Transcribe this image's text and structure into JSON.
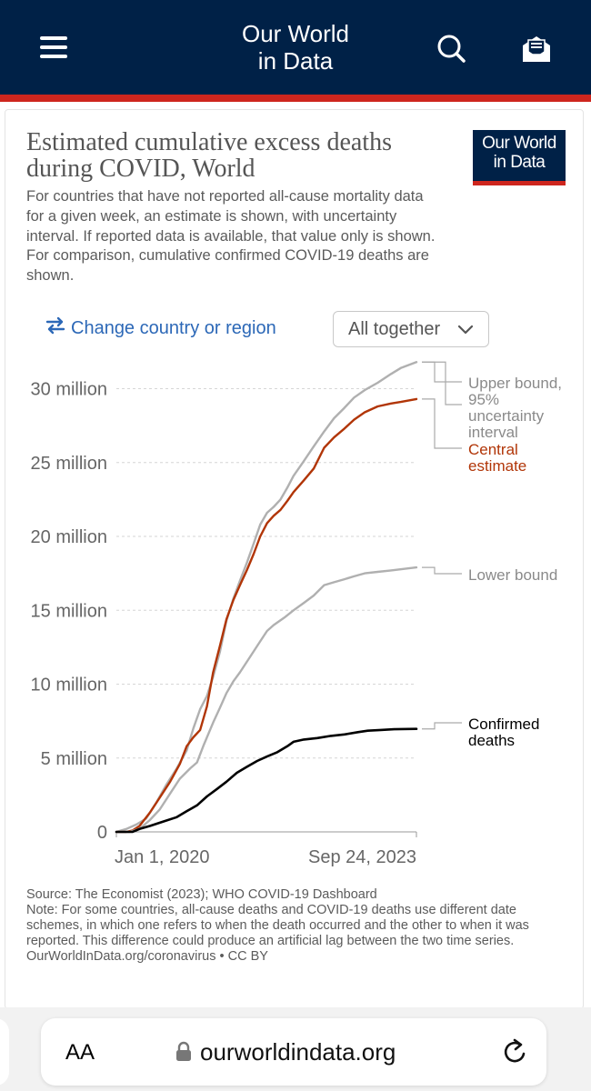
{
  "header": {
    "site_title": "Our World\nin Data",
    "menu_icon": "hamburger-menu-icon",
    "search_icon": "search-icon",
    "newsletter_icon": "newsletter-envelope-icon"
  },
  "chart_header": {
    "title": "Estimated cumulative excess deaths during COVID, World",
    "subtitle": "For countries that have not reported all-cause mortality data for a given week, an estimate is shown, with uncertainty interval. If reported data is available, that value only is shown. For comparison, cumulative confirmed COVID-19 deaths are shown.",
    "logo_text": "Our World\nin Data"
  },
  "controls": {
    "change_country_label": "Change country or region",
    "change_country_icon": "swap-arrows-icon",
    "view_select_label": "All together",
    "view_select_icon": "chevron-down-icon"
  },
  "chart_data": {
    "type": "line",
    "title": "Estimated cumulative excess deaths during COVID, World",
    "y_ticks": [
      {
        "value": 0,
        "label": "0"
      },
      {
        "value": 5000000,
        "label": "5 million"
      },
      {
        "value": 10000000,
        "label": "10 million"
      },
      {
        "value": 15000000,
        "label": "15 million"
      },
      {
        "value": 20000000,
        "label": "20 million"
      },
      {
        "value": 25000000,
        "label": "25 million"
      },
      {
        "value": 30000000,
        "label": "30 million"
      }
    ],
    "x_tick_labels": [
      "Jan 1, 2020",
      "Sep 24, 2023"
    ],
    "xlim": [
      "2020-01-01",
      "2023-09-24"
    ],
    "ylim": [
      0,
      32000000
    ],
    "grid": true,
    "legend_placement": "right, inline labels",
    "series": [
      {
        "name": "Upper bound, 95% uncertainty interval",
        "color": "#b0b0b0",
        "points": [
          [
            "2020-01-01",
            0
          ],
          [
            "2020-02-15",
            200000
          ],
          [
            "2020-04-01",
            500000
          ],
          [
            "2020-05-15",
            900000
          ],
          [
            "2020-07-01",
            2000000
          ],
          [
            "2020-08-15",
            3200000
          ],
          [
            "2020-10-01",
            4300000
          ],
          [
            "2020-11-15",
            5500000
          ],
          [
            "2020-12-15",
            7000000
          ],
          [
            "2021-01-15",
            8300000
          ],
          [
            "2021-02-15",
            9200000
          ],
          [
            "2021-03-15",
            10500000
          ],
          [
            "2021-04-15",
            12200000
          ],
          [
            "2021-05-15",
            14300000
          ],
          [
            "2021-06-15",
            15800000
          ],
          [
            "2021-07-15",
            17000000
          ],
          [
            "2021-08-15",
            18200000
          ],
          [
            "2021-09-15",
            19500000
          ],
          [
            "2021-10-15",
            20800000
          ],
          [
            "2021-11-15",
            21600000
          ],
          [
            "2021-12-15",
            22000000
          ],
          [
            "2022-01-15",
            22500000
          ],
          [
            "2022-02-15",
            23300000
          ],
          [
            "2022-03-15",
            24100000
          ],
          [
            "2022-05-01",
            25100000
          ],
          [
            "2022-06-15",
            26100000
          ],
          [
            "2022-08-01",
            27100000
          ],
          [
            "2022-09-15",
            28000000
          ],
          [
            "2022-11-01",
            28700000
          ],
          [
            "2022-12-15",
            29400000
          ],
          [
            "2023-02-01",
            29900000
          ],
          [
            "2023-04-01",
            30400000
          ],
          [
            "2023-06-01",
            31000000
          ],
          [
            "2023-07-15",
            31400000
          ],
          [
            "2023-09-24",
            31800000
          ]
        ]
      },
      {
        "name": "Central estimate",
        "color": "#b13507",
        "points": [
          [
            "2020-01-01",
            0
          ],
          [
            "2020-02-15",
            0
          ],
          [
            "2020-03-15",
            100000
          ],
          [
            "2020-04-15",
            400000
          ],
          [
            "2020-06-01",
            1300000
          ],
          [
            "2020-07-15",
            2300000
          ],
          [
            "2020-09-01",
            3400000
          ],
          [
            "2020-10-15",
            4600000
          ],
          [
            "2020-11-15",
            5800000
          ],
          [
            "2020-12-15",
            6400000
          ],
          [
            "2021-01-15",
            6900000
          ],
          [
            "2021-02-15",
            8500000
          ],
          [
            "2021-03-15",
            10800000
          ],
          [
            "2021-04-15",
            12600000
          ],
          [
            "2021-05-15",
            14400000
          ],
          [
            "2021-06-15",
            15700000
          ],
          [
            "2021-07-15",
            16700000
          ],
          [
            "2021-08-15",
            17700000
          ],
          [
            "2021-09-15",
            18800000
          ],
          [
            "2021-10-15",
            20000000
          ],
          [
            "2021-11-15",
            20900000
          ],
          [
            "2021-12-15",
            21400000
          ],
          [
            "2022-01-15",
            21800000
          ],
          [
            "2022-02-15",
            22400000
          ],
          [
            "2022-03-15",
            23000000
          ],
          [
            "2022-05-01",
            23800000
          ],
          [
            "2022-06-15",
            24600000
          ],
          [
            "2022-08-01",
            26000000
          ],
          [
            "2022-09-15",
            26700000
          ],
          [
            "2022-11-01",
            27300000
          ],
          [
            "2022-12-15",
            27900000
          ],
          [
            "2023-02-01",
            28400000
          ],
          [
            "2023-04-01",
            28800000
          ],
          [
            "2023-06-01",
            29000000
          ],
          [
            "2023-07-15",
            29100000
          ],
          [
            "2023-09-24",
            29300000
          ]
        ]
      },
      {
        "name": "Lower bound",
        "color": "#b0b0b0",
        "points": [
          [
            "2020-01-01",
            0
          ],
          [
            "2020-03-01",
            0
          ],
          [
            "2020-04-15",
            200000
          ],
          [
            "2020-06-01",
            800000
          ],
          [
            "2020-07-15",
            1500000
          ],
          [
            "2020-09-01",
            2600000
          ],
          [
            "2020-10-15",
            3600000
          ],
          [
            "2020-12-01",
            4300000
          ],
          [
            "2021-01-01",
            4700000
          ],
          [
            "2021-02-01",
            5900000
          ],
          [
            "2021-03-15",
            7400000
          ],
          [
            "2021-04-15",
            8400000
          ],
          [
            "2021-05-15",
            9400000
          ],
          [
            "2021-06-15",
            10200000
          ],
          [
            "2021-07-15",
            10800000
          ],
          [
            "2021-09-01",
            11900000
          ],
          [
            "2021-10-15",
            12900000
          ],
          [
            "2021-11-15",
            13600000
          ],
          [
            "2021-12-15",
            14000000
          ],
          [
            "2022-02-01",
            14500000
          ],
          [
            "2022-03-15",
            15000000
          ],
          [
            "2022-05-01",
            15500000
          ],
          [
            "2022-06-15",
            16000000
          ],
          [
            "2022-08-01",
            16700000
          ],
          [
            "2022-09-15",
            16900000
          ],
          [
            "2022-11-01",
            17100000
          ],
          [
            "2022-12-15",
            17300000
          ],
          [
            "2023-02-01",
            17500000
          ],
          [
            "2023-04-01",
            17600000
          ],
          [
            "2023-06-01",
            17700000
          ],
          [
            "2023-09-24",
            17900000
          ]
        ]
      },
      {
        "name": "Confirmed deaths",
        "color": "#000000",
        "points": [
          [
            "2020-01-01",
            0
          ],
          [
            "2020-03-15",
            5000
          ],
          [
            "2020-04-15",
            200000
          ],
          [
            "2020-06-01",
            400000
          ],
          [
            "2020-08-01",
            700000
          ],
          [
            "2020-10-01",
            1000000
          ],
          [
            "2020-11-15",
            1400000
          ],
          [
            "2021-01-01",
            1800000
          ],
          [
            "2021-02-15",
            2400000
          ],
          [
            "2021-04-01",
            2900000
          ],
          [
            "2021-05-15",
            3400000
          ],
          [
            "2021-07-01",
            4000000
          ],
          [
            "2021-08-15",
            4400000
          ],
          [
            "2021-10-01",
            4800000
          ],
          [
            "2021-11-15",
            5100000
          ],
          [
            "2022-01-01",
            5400000
          ],
          [
            "2022-02-15",
            5800000
          ],
          [
            "2022-03-15",
            6100000
          ],
          [
            "2022-05-01",
            6250000
          ],
          [
            "2022-07-01",
            6350000
          ],
          [
            "2022-09-01",
            6500000
          ],
          [
            "2022-11-01",
            6600000
          ],
          [
            "2023-01-01",
            6750000
          ],
          [
            "2023-02-15",
            6850000
          ],
          [
            "2023-04-15",
            6900000
          ],
          [
            "2023-06-15",
            6950000
          ],
          [
            "2023-09-24",
            6970000
          ]
        ]
      }
    ],
    "line_labels": [
      {
        "series": "Upper bound, 95% uncertainty interval",
        "lines": [
          "Upper bound,",
          "95%",
          "uncertainty",
          "interval"
        ],
        "color": "#8a8a8a"
      },
      {
        "series": "Central estimate",
        "lines": [
          "Central",
          "estimate"
        ],
        "color": "#b13507"
      },
      {
        "series": "Lower bound",
        "lines": [
          "Lower bound"
        ],
        "color": "#8a8a8a"
      },
      {
        "series": "Confirmed deaths",
        "lines": [
          "Confirmed",
          "deaths"
        ],
        "color": "#000000"
      }
    ]
  },
  "footer": {
    "source": "Source: The Economist (2023); WHO COVID-19 Dashboard",
    "note": "Note: For some countries, all-cause deaths and COVID-19 deaths use different date schemes, in which one refers to when the death occurred and the other to when it was reported. This difference could produce an artificial lag between the two time series.",
    "credit": "OurWorldInData.org/coronavirus • CC BY"
  },
  "browser": {
    "text_size_label": "AA",
    "url": "ourworldindata.org",
    "lock_icon": "lock-icon",
    "reload_icon": "reload-icon"
  }
}
